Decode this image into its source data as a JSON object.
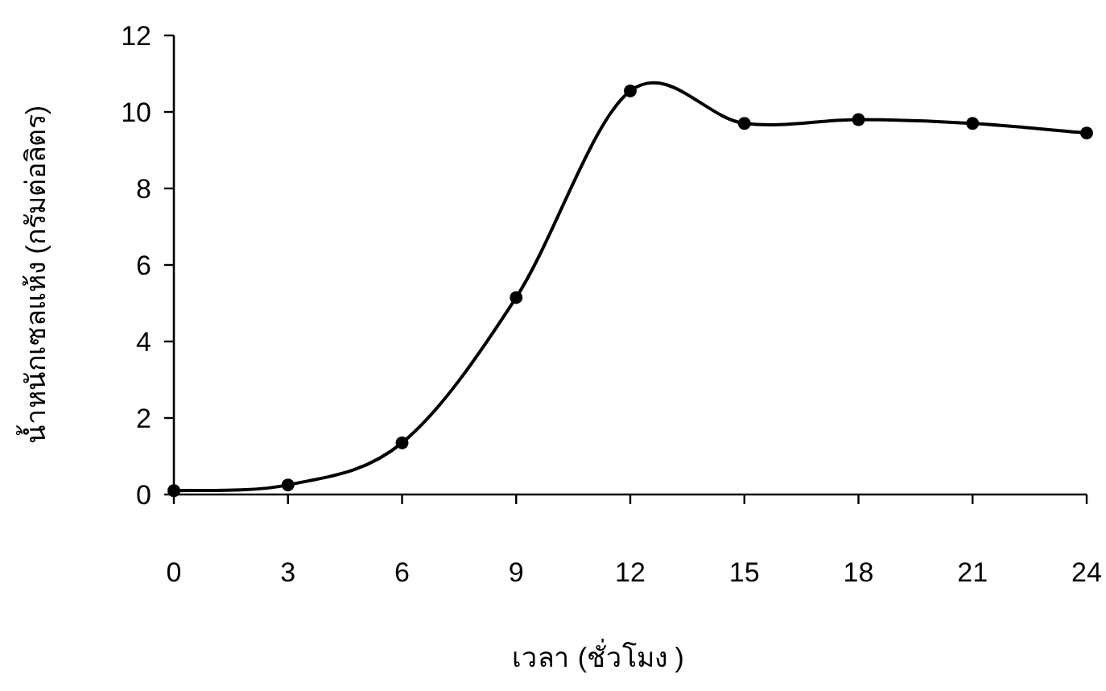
{
  "chart_data": {
    "type": "line",
    "xlabel": "เวลา (ชั่วโมง )",
    "ylabel": "น้ำหนักเซลแห้ง (กรัมต่อลิตร)",
    "x": [
      0,
      3,
      6,
      9,
      12,
      15,
      18,
      21,
      24
    ],
    "series": [
      {
        "color": "#000000",
        "values": [
          0.1,
          0.25,
          1.35,
          5.15,
          10.55,
          9.7,
          9.8,
          9.7,
          9.45
        ]
      }
    ],
    "xlim": [
      0,
      24
    ],
    "ylim": [
      0,
      12
    ],
    "xticks": [
      0,
      3,
      6,
      9,
      12,
      15,
      18,
      21,
      24
    ],
    "yticks": [
      0,
      2,
      4,
      6,
      8,
      10,
      12
    ],
    "marker": "circle",
    "line_style": "solid",
    "grid": false
  }
}
